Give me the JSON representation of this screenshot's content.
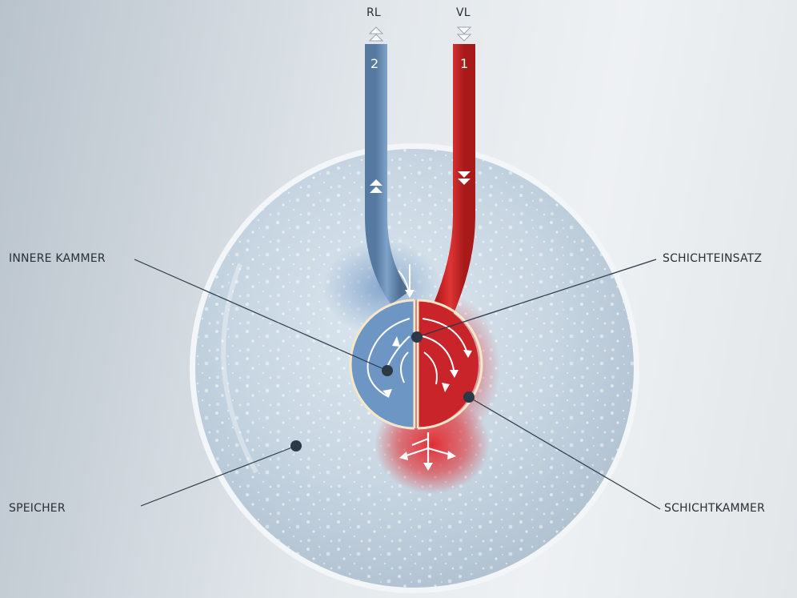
{
  "ports": {
    "return_label": "RL",
    "supply_label": "VL"
  },
  "pipes": {
    "return_number": "2",
    "supply_number": "1"
  },
  "callouts": {
    "inner_chamber": "INNERE KAMMER",
    "stratification_insert": "SCHICHTEINSATZ",
    "storage": "SPEICHER",
    "stratification_chamber": "SCHICHTKAMMER"
  },
  "colors": {
    "supply_red": "#d42a2a",
    "return_blue": "#6f94bd",
    "tank_water": "#c9d8e4",
    "callout_dot": "#2b3946",
    "label_text": "#2a2f36"
  }
}
